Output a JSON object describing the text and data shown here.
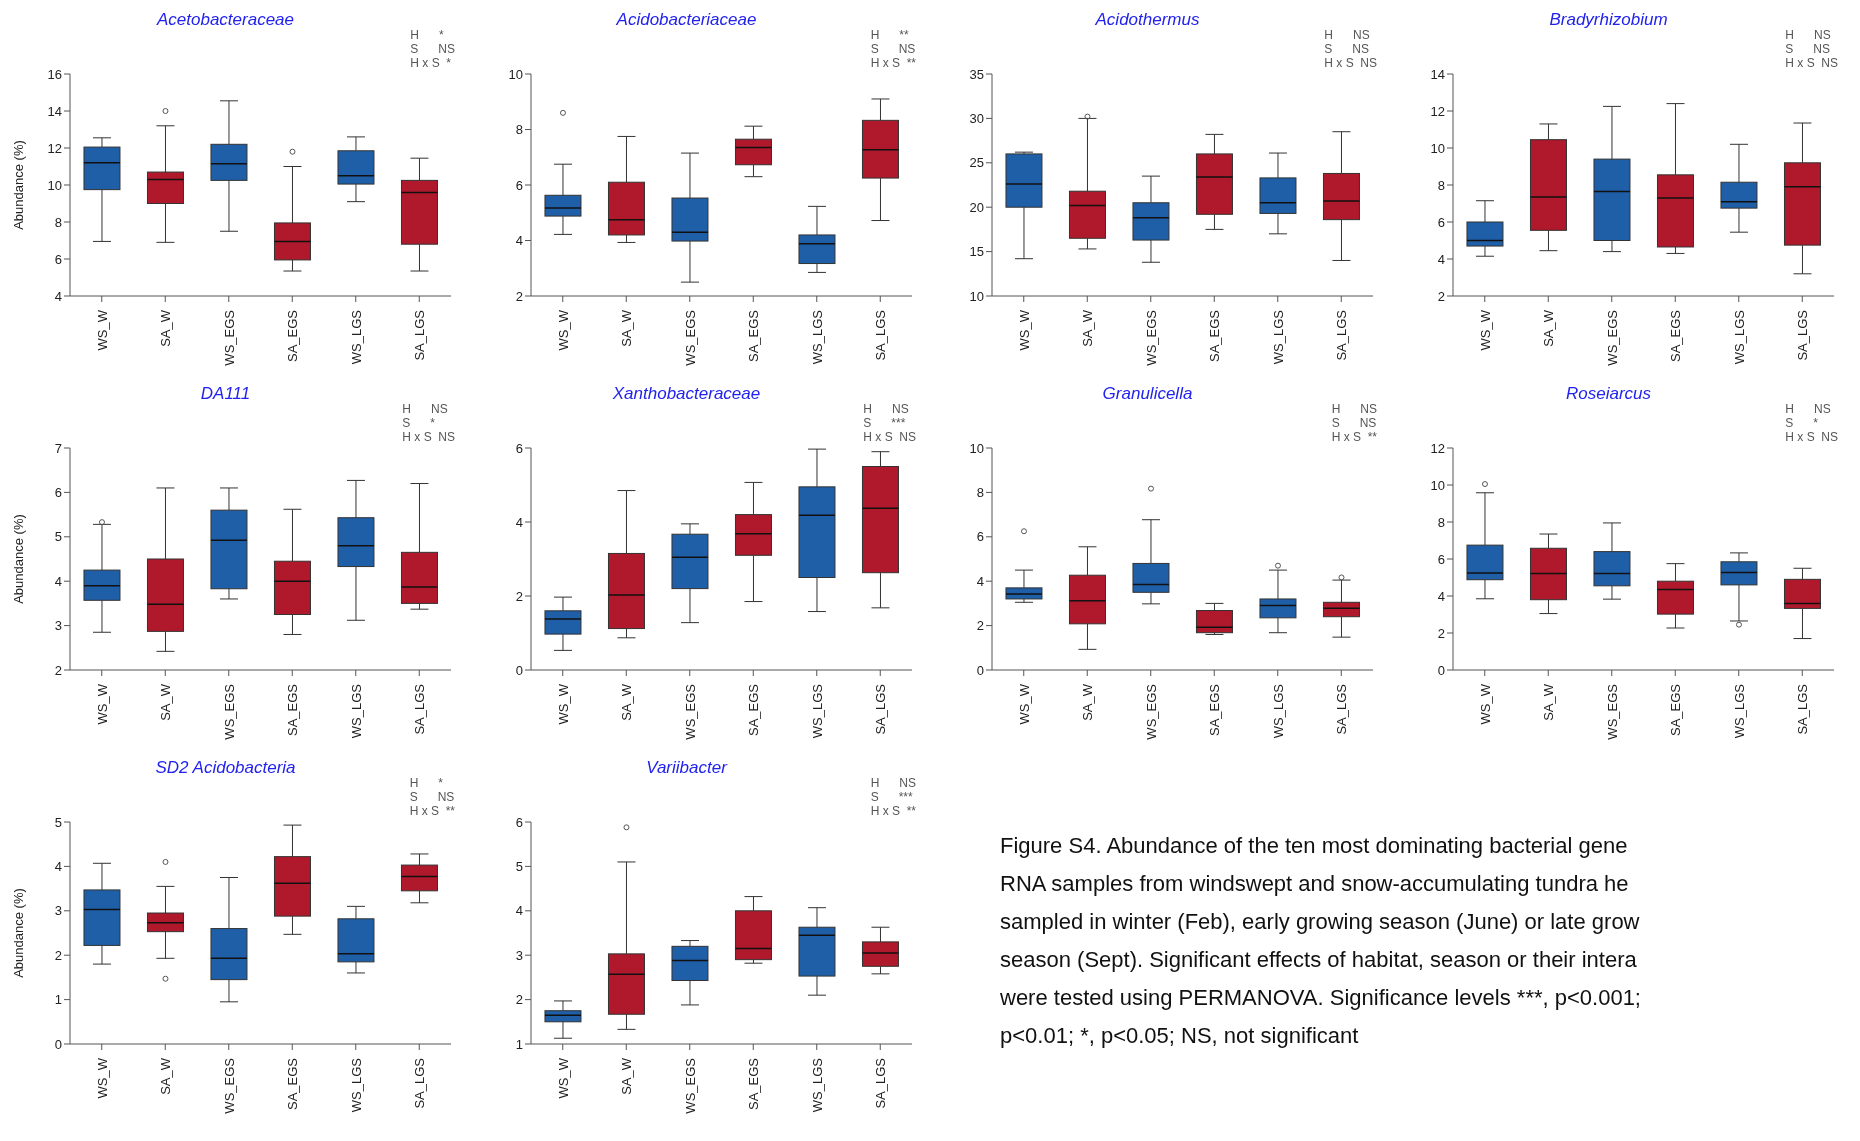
{
  "chart_data": [
    {
      "type": "box",
      "title": "Acetobacteraceae",
      "ylabel": "Abundance (%)",
      "categories": [
        "WS_W",
        "SA_W",
        "WS_EGS",
        "SA_EGS",
        "WS_LGS",
        "SA_LGS"
      ],
      "colors": [
        "#1f5fa8",
        "#b0182b",
        "#1f5fa8",
        "#b0182b",
        "#1f5fa8",
        "#b0182b"
      ],
      "ylim": [
        4,
        16
      ],
      "yticks": [
        4,
        6,
        8,
        10,
        12,
        14,
        16
      ],
      "annotations": [
        "H      *",
        "S      NS",
        "H x S  *"
      ],
      "boxes": [
        {
          "low": 6.95,
          "q1": 9.75,
          "median": 11.2,
          "q3": 12.05,
          "high": 12.55
        },
        {
          "low": 6.9,
          "q1": 9.0,
          "median": 10.3,
          "q3": 10.7,
          "high": 13.2,
          "outliers": [
            14.0
          ]
        },
        {
          "low": 7.5,
          "q1": 10.25,
          "median": 11.15,
          "q3": 12.2,
          "high": 14.55
        },
        {
          "low": 5.35,
          "q1": 5.95,
          "median": 6.95,
          "q3": 7.95,
          "high": 11.0,
          "outliers": [
            11.8
          ]
        },
        {
          "low": 9.1,
          "q1": 10.05,
          "median": 10.5,
          "q3": 11.85,
          "high": 12.6
        },
        {
          "low": 5.35,
          "q1": 6.8,
          "median": 9.6,
          "q3": 10.25,
          "high": 11.45
        }
      ]
    },
    {
      "type": "box",
      "title": "Acidobacteriaceae",
      "categories": [
        "WS_W",
        "SA_W",
        "WS_EGS",
        "SA_EGS",
        "WS_LGS",
        "SA_LGS"
      ],
      "colors": [
        "#1f5fa8",
        "#b0182b",
        "#1f5fa8",
        "#b0182b",
        "#1f5fa8",
        "#b0182b"
      ],
      "ylim": [
        2,
        10
      ],
      "yticks": [
        2,
        4,
        6,
        8,
        10
      ],
      "annotations": [
        "H      **",
        "S      NS",
        "H x S  **"
      ],
      "boxes": [
        {
          "low": 4.22,
          "q1": 4.88,
          "median": 5.17,
          "q3": 5.63,
          "high": 6.75,
          "outliers": [
            8.6
          ]
        },
        {
          "low": 3.93,
          "q1": 4.2,
          "median": 4.75,
          "q3": 6.1,
          "high": 7.75
        },
        {
          "low": 2.5,
          "q1": 3.98,
          "median": 4.3,
          "q3": 5.53,
          "high": 7.15
        },
        {
          "low": 6.3,
          "q1": 6.73,
          "median": 7.35,
          "q3": 7.65,
          "high": 8.12
        },
        {
          "low": 2.85,
          "q1": 3.17,
          "median": 3.88,
          "q3": 4.2,
          "high": 5.23
        },
        {
          "low": 4.72,
          "q1": 6.25,
          "median": 7.27,
          "q3": 8.33,
          "high": 9.1
        }
      ]
    },
    {
      "type": "box",
      "title": "Acidothermus",
      "categories": [
        "WS_W",
        "SA_W",
        "WS_EGS",
        "SA_EGS",
        "WS_LGS",
        "SA_LGS"
      ],
      "colors": [
        "#1f5fa8",
        "#b0182b",
        "#1f5fa8",
        "#b0182b",
        "#1f5fa8",
        "#b0182b"
      ],
      "ylim": [
        10,
        35
      ],
      "yticks": [
        10,
        15,
        20,
        25,
        30,
        35
      ],
      "annotations": [
        "H      NS",
        "S      NS",
        "H x S  NS"
      ],
      "boxes": [
        {
          "low": 14.2,
          "q1": 20.0,
          "median": 22.6,
          "q3": 26.0,
          "high": 26.2
        },
        {
          "low": 15.3,
          "q1": 16.5,
          "median": 20.2,
          "q3": 21.8,
          "high": 30.0,
          "outliers": [
            30.2
          ]
        },
        {
          "low": 13.8,
          "q1": 16.3,
          "median": 18.8,
          "q3": 20.5,
          "high": 23.5
        },
        {
          "low": 17.5,
          "q1": 19.2,
          "median": 23.4,
          "q3": 26.0,
          "high": 28.2
        },
        {
          "low": 17.0,
          "q1": 19.3,
          "median": 20.5,
          "q3": 23.3,
          "high": 26.1
        },
        {
          "low": 14.0,
          "q1": 18.6,
          "median": 20.7,
          "q3": 23.8,
          "high": 28.5
        }
      ]
    },
    {
      "type": "box",
      "title": "Bradyrhizobium",
      "categories": [
        "WS_W",
        "SA_W",
        "WS_EGS",
        "SA_EGS",
        "WS_LGS",
        "SA_LGS"
      ],
      "colors": [
        "#1f5fa8",
        "#b0182b",
        "#1f5fa8",
        "#b0182b",
        "#1f5fa8",
        "#b0182b"
      ],
      "ylim": [
        2,
        14
      ],
      "yticks": [
        2,
        4,
        6,
        8,
        10,
        12,
        14
      ],
      "annotations": [
        "H      NS",
        "S      NS",
        "H x S  NS"
      ],
      "boxes": [
        {
          "low": 4.15,
          "q1": 4.7,
          "median": 5.0,
          "q3": 6.0,
          "high": 7.15
        },
        {
          "low": 4.45,
          "q1": 5.55,
          "median": 7.35,
          "q3": 10.45,
          "high": 11.3
        },
        {
          "low": 4.4,
          "q1": 5.0,
          "median": 7.65,
          "q3": 9.4,
          "high": 12.25
        },
        {
          "low": 4.3,
          "q1": 4.65,
          "median": 7.3,
          "q3": 8.55,
          "high": 12.4
        },
        {
          "low": 5.45,
          "q1": 6.75,
          "median": 7.1,
          "q3": 8.15,
          "high": 10.2
        },
        {
          "low": 3.2,
          "q1": 4.75,
          "median": 7.9,
          "q3": 9.2,
          "high": 11.35
        }
      ]
    },
    {
      "type": "box",
      "title": "DA111",
      "ylabel": "Abundance (%)",
      "categories": [
        "WS_W",
        "SA_W",
        "WS_EGS",
        "SA_EGS",
        "WS_LGS",
        "SA_LGS"
      ],
      "colors": [
        "#1f5fa8",
        "#b0182b",
        "#1f5fa8",
        "#b0182b",
        "#1f5fa8",
        "#b0182b"
      ],
      "ylim": [
        2,
        7
      ],
      "yticks": [
        2,
        3,
        4,
        5,
        6,
        7
      ],
      "annotations": [
        "H      NS",
        "S      *",
        "H x S  NS"
      ],
      "boxes": [
        {
          "low": 2.85,
          "q1": 3.57,
          "median": 3.9,
          "q3": 4.25,
          "high": 5.28,
          "outliers": [
            5.33
          ]
        },
        {
          "low": 2.42,
          "q1": 2.87,
          "median": 3.48,
          "q3": 4.5,
          "high": 6.1
        },
        {
          "low": 3.6,
          "q1": 3.83,
          "median": 4.92,
          "q3": 5.6,
          "high": 6.1
        },
        {
          "low": 2.8,
          "q1": 3.25,
          "median": 4.0,
          "q3": 4.45,
          "high": 5.62
        },
        {
          "low": 3.12,
          "q1": 4.33,
          "median": 4.8,
          "q3": 5.43,
          "high": 6.27
        },
        {
          "low": 3.37,
          "q1": 3.5,
          "median": 3.87,
          "q3": 4.65,
          "high": 6.2
        }
      ]
    },
    {
      "type": "box",
      "title": "Xanthobacteraceae",
      "categories": [
        "WS_W",
        "SA_W",
        "WS_EGS",
        "SA_EGS",
        "WS_LGS",
        "SA_LGS"
      ],
      "colors": [
        "#1f5fa8",
        "#b0182b",
        "#1f5fa8",
        "#b0182b",
        "#1f5fa8",
        "#b0182b"
      ],
      "ylim": [
        0,
        6
      ],
      "yticks": [
        0,
        2,
        4,
        6
      ],
      "annotations": [
        "H      NS",
        "S      ***",
        "H x S  NS"
      ],
      "boxes": [
        {
          "low": 0.53,
          "q1": 0.97,
          "median": 1.38,
          "q3": 1.6,
          "high": 1.97
        },
        {
          "low": 0.87,
          "q1": 1.12,
          "median": 2.03,
          "q3": 3.15,
          "high": 4.85
        },
        {
          "low": 1.28,
          "q1": 2.2,
          "median": 3.05,
          "q3": 3.67,
          "high": 3.95
        },
        {
          "low": 1.85,
          "q1": 3.1,
          "median": 3.68,
          "q3": 4.2,
          "high": 5.07
        },
        {
          "low": 1.58,
          "q1": 2.5,
          "median": 4.18,
          "q3": 4.95,
          "high": 5.97
        },
        {
          "low": 1.68,
          "q1": 2.63,
          "median": 4.37,
          "q3": 5.5,
          "high": 5.9
        }
      ]
    },
    {
      "type": "box",
      "title": "Granulicella",
      "categories": [
        "WS_W",
        "SA_W",
        "WS_EGS",
        "SA_EGS",
        "WS_LGS",
        "SA_LGS"
      ],
      "colors": [
        "#1f5fa8",
        "#b0182b",
        "#1f5fa8",
        "#b0182b",
        "#1f5fa8",
        "#b0182b"
      ],
      "ylim": [
        0,
        10
      ],
      "yticks": [
        0,
        2,
        4,
        6,
        8,
        10
      ],
      "annotations": [
        "H      NS",
        "S      NS",
        "H x S  **"
      ],
      "boxes": [
        {
          "low": 3.05,
          "q1": 3.2,
          "median": 3.42,
          "q3": 3.7,
          "high": 4.5,
          "outliers": [
            6.25
          ]
        },
        {
          "low": 0.93,
          "q1": 2.08,
          "median": 3.12,
          "q3": 4.27,
          "high": 5.55
        },
        {
          "low": 2.98,
          "q1": 3.5,
          "median": 3.85,
          "q3": 4.8,
          "high": 6.77,
          "outliers": [
            8.17
          ]
        },
        {
          "low": 1.6,
          "q1": 1.68,
          "median": 1.93,
          "q3": 2.68,
          "high": 3.0
        },
        {
          "low": 1.68,
          "q1": 2.35,
          "median": 2.9,
          "q3": 3.2,
          "high": 4.5,
          "outliers": [
            4.7
          ]
        },
        {
          "low": 1.48,
          "q1": 2.4,
          "median": 2.78,
          "q3": 3.05,
          "high": 4.05,
          "outliers": [
            4.17
          ]
        }
      ]
    },
    {
      "type": "box",
      "title": "Roseiarcus",
      "categories": [
        "WS_W",
        "SA_W",
        "WS_EGS",
        "SA_EGS",
        "WS_LGS",
        "SA_LGS"
      ],
      "colors": [
        "#1f5fa8",
        "#b0182b",
        "#1f5fa8",
        "#b0182b",
        "#1f5fa8",
        "#b0182b"
      ],
      "ylim": [
        0,
        12
      ],
      "yticks": [
        0,
        2,
        4,
        6,
        8,
        10,
        12
      ],
      "annotations": [
        "H      NS",
        "S      *",
        "H x S  NS"
      ],
      "boxes": [
        {
          "low": 3.85,
          "q1": 4.88,
          "median": 5.25,
          "q3": 6.75,
          "high": 9.58,
          "outliers": [
            10.05
          ]
        },
        {
          "low": 3.05,
          "q1": 3.8,
          "median": 5.22,
          "q3": 6.58,
          "high": 7.35
        },
        {
          "low": 3.83,
          "q1": 4.55,
          "median": 5.22,
          "q3": 6.4,
          "high": 7.95
        },
        {
          "low": 2.27,
          "q1": 3.02,
          "median": 4.35,
          "q3": 4.8,
          "high": 5.75
        },
        {
          "low": 2.65,
          "q1": 4.6,
          "median": 5.27,
          "q3": 5.85,
          "high": 6.33,
          "outliers": [
            2.45
          ]
        },
        {
          "low": 1.7,
          "q1": 3.33,
          "median": 3.6,
          "q3": 4.9,
          "high": 5.5
        }
      ]
    },
    {
      "type": "box",
      "title": "SD2 Acidobacteria",
      "ylabel": "Abundance (%)",
      "categories": [
        "WS_W",
        "SA_W",
        "WS_EGS",
        "SA_EGS",
        "WS_LGS",
        "SA_LGS"
      ],
      "colors": [
        "#1f5fa8",
        "#b0182b",
        "#1f5fa8",
        "#b0182b",
        "#1f5fa8",
        "#b0182b"
      ],
      "ylim": [
        0,
        5
      ],
      "yticks": [
        0,
        1,
        2,
        3,
        4,
        5
      ],
      "annotations": [
        "H      *",
        "S      NS",
        "H x S  **"
      ],
      "boxes": [
        {
          "low": 1.8,
          "q1": 2.22,
          "median": 3.03,
          "q3": 3.47,
          "high": 4.07
        },
        {
          "low": 1.93,
          "q1": 2.53,
          "median": 2.73,
          "q3": 2.95,
          "high": 3.55,
          "outliers": [
            4.1,
            1.47
          ]
        },
        {
          "low": 0.95,
          "q1": 1.45,
          "median": 1.93,
          "q3": 2.6,
          "high": 3.75
        },
        {
          "low": 2.47,
          "q1": 2.88,
          "median": 3.62,
          "q3": 4.22,
          "high": 4.93
        },
        {
          "low": 1.6,
          "q1": 1.85,
          "median": 2.03,
          "q3": 2.82,
          "high": 3.1
        },
        {
          "low": 3.18,
          "q1": 3.45,
          "median": 3.77,
          "q3": 4.03,
          "high": 4.28
        }
      ]
    },
    {
      "type": "box",
      "title": "Variibacter",
      "categories": [
        "WS_W",
        "SA_W",
        "WS_EGS",
        "SA_EGS",
        "WS_LGS",
        "SA_LGS"
      ],
      "colors": [
        "#1f5fa8",
        "#b0182b",
        "#1f5fa8",
        "#b0182b",
        "#1f5fa8",
        "#b0182b"
      ],
      "ylim": [
        1,
        6
      ],
      "yticks": [
        1,
        2,
        3,
        4,
        5,
        6
      ],
      "annotations": [
        "H      NS",
        "S      ***",
        "H x S  **"
      ],
      "boxes": [
        {
          "low": 1.13,
          "q1": 1.5,
          "median": 1.65,
          "q3": 1.75,
          "high": 1.97
        },
        {
          "low": 1.33,
          "q1": 1.67,
          "median": 2.57,
          "q3": 3.03,
          "high": 5.1,
          "outliers": [
            5.88
          ]
        },
        {
          "low": 1.88,
          "q1": 2.43,
          "median": 2.88,
          "q3": 3.2,
          "high": 3.33
        },
        {
          "low": 2.82,
          "q1": 2.9,
          "median": 3.15,
          "q3": 4.0,
          "high": 4.32
        },
        {
          "low": 2.1,
          "q1": 2.53,
          "median": 3.45,
          "q3": 3.63,
          "high": 4.07
        },
        {
          "low": 2.58,
          "q1": 2.75,
          "median": 3.05,
          "q3": 3.3,
          "high": 3.63
        }
      ]
    },
    {
      "type": "other",
      "annotations": [
        "Figure S4. Abundance of the ten most dominating bacterial gene",
        "RNA samples from windswept and snow-accumulating tundra he",
        "sampled in winter (Feb), early growing season (June) or late grow",
        "season (Sept). Significant effects of habitat, season or their intera",
        "were tested using PERMANOVA. Significance levels ***, p<0.001;",
        "p<0.01; *, p<0.05; NS, not significant"
      ]
    }
  ]
}
